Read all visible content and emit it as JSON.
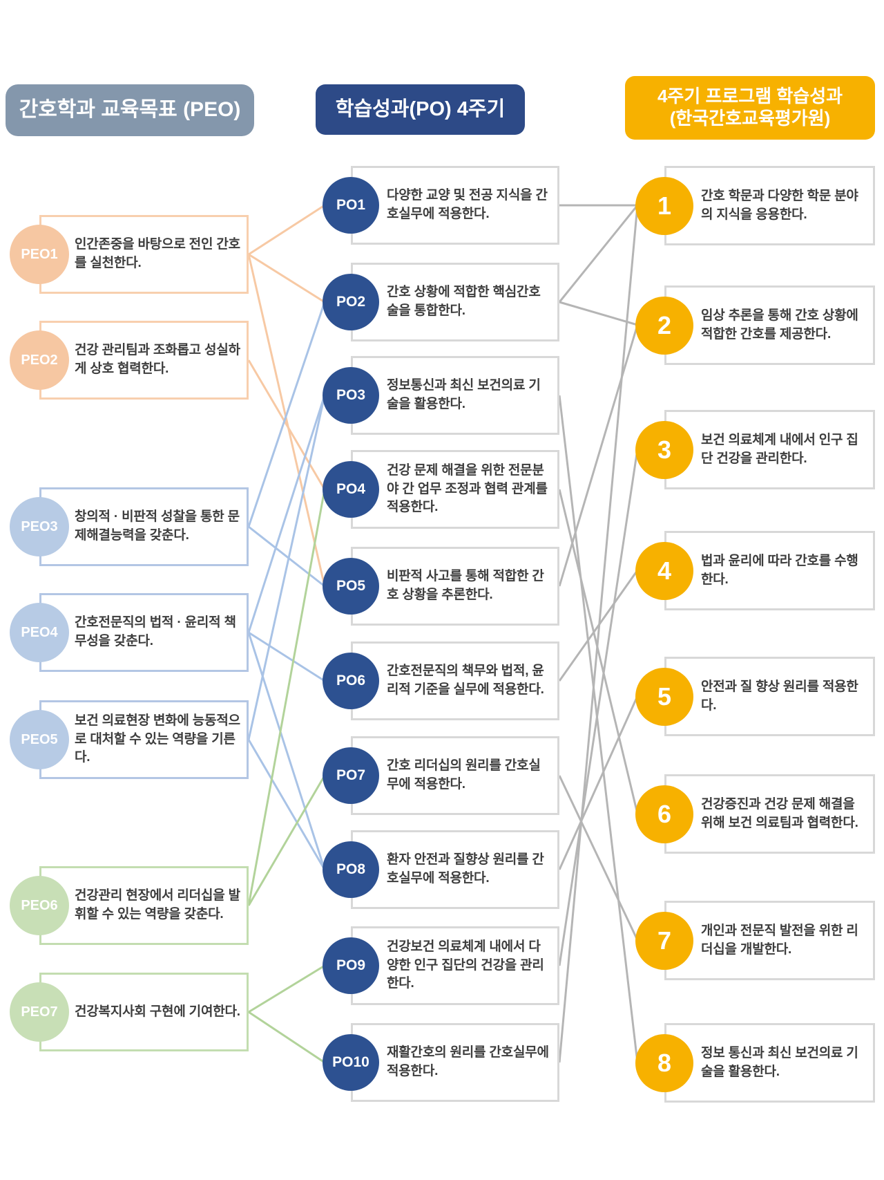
{
  "peo": {
    "header": "간호학과 교육목표 (PEO)",
    "items": [
      {
        "id": "PEO1",
        "tone": "peach",
        "text": "인간존중을 바탕으로 전인 간호를 실천한다."
      },
      {
        "id": "PEO2",
        "tone": "peach",
        "text": "건강 관리팀과 조화롭고 성실하게 상호 협력한다."
      },
      {
        "id": "PEO3",
        "tone": "blue",
        "text": "창의적 · 비판적 성찰을 통한 문제해결능력을 갖춘다."
      },
      {
        "id": "PEO4",
        "tone": "blue",
        "text": "간호전문직의 법적 · 윤리적 책무성을 갖춘다."
      },
      {
        "id": "PEO5",
        "tone": "blue",
        "text": "보건 의료현장 변화에 능동적으로 대처할 수 있는 역량을 기른다."
      },
      {
        "id": "PEO6",
        "tone": "green",
        "text": "건강관리 현장에서 리더십을 발휘할 수 있는 역량을 갖춘다."
      },
      {
        "id": "PEO7",
        "tone": "green",
        "text": "건강복지사회 구현에 기여한다."
      }
    ]
  },
  "po": {
    "header": "학습성과(PO) 4주기",
    "items": [
      {
        "id": "PO1",
        "text": "다양한 교양 및 전공 지식을 간호실무에 적용한다."
      },
      {
        "id": "PO2",
        "text": "간호 상황에 적합한 핵심간호술을 통합한다."
      },
      {
        "id": "PO3",
        "text": "정보통신과 최신 보건의료 기술을 활용한다."
      },
      {
        "id": "PO4",
        "text": "건강 문제 해결을 위한 전문분야 간 업무 조정과 협력 관계를 적용한다."
      },
      {
        "id": "PO5",
        "text": "비판적 사고를 통해 적합한 간호 상황을 추론한다."
      },
      {
        "id": "PO6",
        "text": "간호전문직의 책무와 법적, 윤리적 기준을 실무에 적용한다."
      },
      {
        "id": "PO7",
        "text": "간호 리더십의 원리를 간호실무에 적용한다."
      },
      {
        "id": "PO8",
        "text": "환자 안전과 질향상 원리를 간호실무에 적용한다."
      },
      {
        "id": "PO9",
        "text": "건강보건 의료체계 내에서 다양한 인구 집단의 건강을 관리한다."
      },
      {
        "id": "PO10",
        "text": "재활간호의 원리를 간호실무에 적용한다."
      }
    ]
  },
  "klo": {
    "header_line1": "4주기 프로그램 학습성과",
    "header_line2": "(한국간호교육평가원)",
    "items": [
      {
        "id": "1",
        "text": "간호 학문과 다양한 학문 분야의 지식을 응용한다."
      },
      {
        "id": "2",
        "text": "임상 추론을 통해 간호 상황에 적합한 간호를 제공한다."
      },
      {
        "id": "3",
        "text": "보건 의료체계 내에서 인구 집단 건강을 관리한다."
      },
      {
        "id": "4",
        "text": "법과 윤리에 따라 간호를 수행한다."
      },
      {
        "id": "5",
        "text": "안전과 질 향상 원리를 적용한다."
      },
      {
        "id": "6",
        "text": "건강증진과 건강 문제 해결을 위해 보건 의료팀과 협력한다."
      },
      {
        "id": "7",
        "text": "개인과 전문직 발전을 위한 리더십을 개발한다."
      },
      {
        "id": "8",
        "text": "정보 통신과 최신 보건의료 기술을 활용한다."
      }
    ]
  },
  "connections": {
    "peo_to_po": [
      [
        "PEO1",
        "PO1"
      ],
      [
        "PEO1",
        "PO2"
      ],
      [
        "PEO1",
        "PO5"
      ],
      [
        "PEO2",
        "PO4"
      ],
      [
        "PEO3",
        "PO2"
      ],
      [
        "PEO3",
        "PO5"
      ],
      [
        "PEO4",
        "PO3"
      ],
      [
        "PEO4",
        "PO6"
      ],
      [
        "PEO4",
        "PO8"
      ],
      [
        "PEO5",
        "PO3"
      ],
      [
        "PEO5",
        "PO8"
      ],
      [
        "PEO6",
        "PO4"
      ],
      [
        "PEO6",
        "PO7"
      ],
      [
        "PEO7",
        "PO9"
      ],
      [
        "PEO7",
        "PO10"
      ]
    ],
    "po_to_klo": [
      [
        "PO1",
        "1"
      ],
      [
        "PO2",
        "1"
      ],
      [
        "PO2",
        "2"
      ],
      [
        "PO3",
        "8"
      ],
      [
        "PO4",
        "6"
      ],
      [
        "PO5",
        "2"
      ],
      [
        "PO6",
        "4"
      ],
      [
        "PO7",
        "7"
      ],
      [
        "PO8",
        "5"
      ],
      [
        "PO9",
        "3"
      ],
      [
        "PO10",
        "1"
      ]
    ]
  },
  "colors": {
    "peach_line": "#f7c9a4",
    "blue_line": "#a9c3e6",
    "green_line": "#b2d39a",
    "gray_line": "#b5b5b5",
    "peo_header_bg": "#8497ac",
    "po_header_bg": "#2d4a87",
    "klo_header_bg": "#f7b100",
    "po_circle_bg": "#2d5191"
  }
}
